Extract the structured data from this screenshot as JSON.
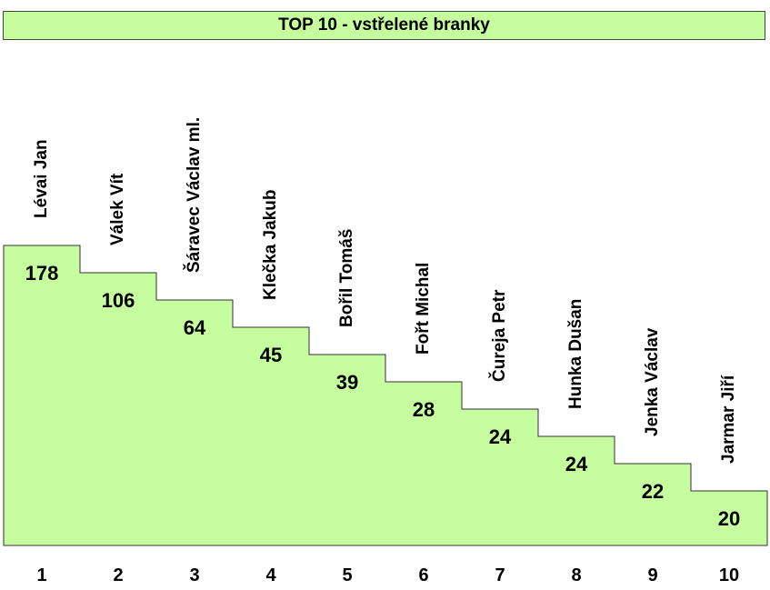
{
  "title": "TOP 10 - vstřelené branky",
  "colors": {
    "fill": "#c5fd9f",
    "stroke": "#333333"
  },
  "chart_data": {
    "type": "bar",
    "title": "TOP 10 - vstřelené branky",
    "categories": [
      "1",
      "2",
      "3",
      "4",
      "5",
      "6",
      "7",
      "8",
      "9",
      "10"
    ],
    "players": [
      "Lévai Jan",
      "Válek Vít",
      "Šáravec Václav ml.",
      "Klečka Jakub",
      "Bořil Tomáš",
      "Fořt Michal",
      "Čureja Petr",
      "Hunka Dušan",
      "Jenka Václav",
      "Jarmar Jiří"
    ],
    "values": [
      178,
      106,
      64,
      45,
      39,
      28,
      24,
      24,
      22,
      20
    ],
    "grid": false,
    "legend": "none"
  }
}
